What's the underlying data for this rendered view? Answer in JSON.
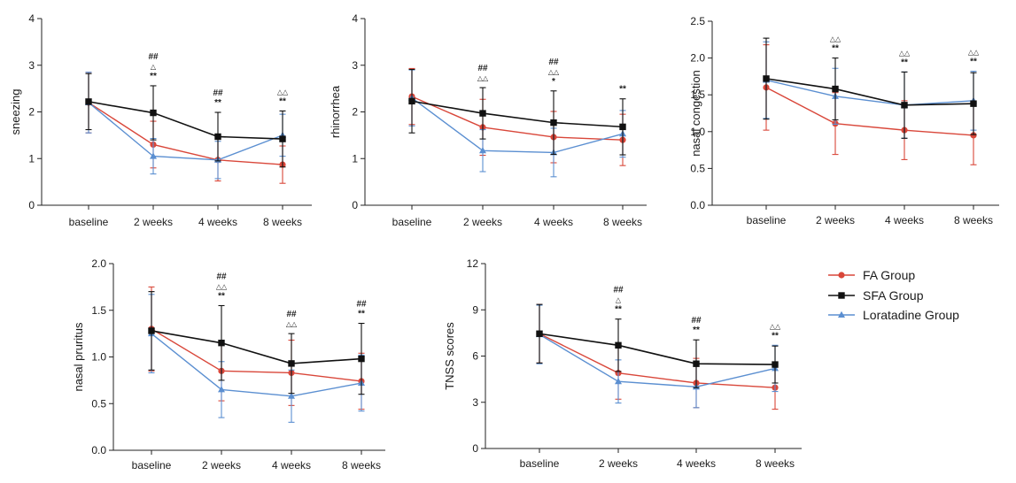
{
  "legend": {
    "items": [
      {
        "key": "fa",
        "label": "FA Group"
      },
      {
        "key": "sfa",
        "label": "SFA Group"
      },
      {
        "key": "lor",
        "label": "Loratadine Group"
      }
    ]
  },
  "colors": {
    "fa": "#d9473a",
    "sfa": "#111111",
    "lor": "#5b8fd1"
  },
  "markers": {
    "fa": "circle",
    "sfa": "square",
    "lor": "triangle"
  },
  "chart_data": [
    {
      "id": "sneezing",
      "type": "line",
      "ylabel": "sneezing",
      "xlabel": "",
      "categories": [
        "baseline",
        "2 weeks",
        "4 weeks",
        "8 weeks"
      ],
      "ylim": [
        0,
        4
      ],
      "yticks": [
        "0",
        "1",
        "2",
        "3",
        "4"
      ],
      "series": [
        {
          "key": "fa",
          "name": "FA Group",
          "values": [
            2.2,
            1.3,
            0.97,
            0.87
          ],
          "err": [
            0.65,
            0.5,
            0.45,
            0.4
          ]
        },
        {
          "key": "sfa",
          "name": "SFA Group",
          "values": [
            2.22,
            1.98,
            1.47,
            1.42
          ],
          "err": [
            0.6,
            0.58,
            0.52,
            0.6
          ]
        },
        {
          "key": "lor",
          "name": "Loratadine Group",
          "values": [
            2.2,
            1.05,
            0.97,
            1.5
          ],
          "err": [
            0.65,
            0.38,
            0.4,
            0.45
          ]
        }
      ],
      "annotations": [
        {
          "x": 1,
          "lines": [
            "##",
            "△",
            "**"
          ]
        },
        {
          "x": 2,
          "lines": [
            "##",
            "**"
          ]
        },
        {
          "x": 3,
          "lines": [
            "△△",
            "**"
          ]
        }
      ]
    },
    {
      "id": "rhinorrhea",
      "type": "line",
      "ylabel": "rhinorrhea",
      "xlabel": "",
      "categories": [
        "baseline",
        "2 weeks",
        "4 weeks",
        "8 weeks"
      ],
      "ylim": [
        0,
        4
      ],
      "yticks": [
        "0",
        "1",
        "2",
        "3",
        "4"
      ],
      "series": [
        {
          "key": "fa",
          "name": "FA Group",
          "values": [
            2.33,
            1.67,
            1.46,
            1.4
          ],
          "err": [
            0.6,
            0.6,
            0.55,
            0.55
          ]
        },
        {
          "key": "sfa",
          "name": "SFA Group",
          "values": [
            2.23,
            1.97,
            1.77,
            1.68
          ],
          "err": [
            0.68,
            0.55,
            0.68,
            0.6
          ]
        },
        {
          "key": "lor",
          "name": "Loratadine Group",
          "values": [
            2.3,
            1.17,
            1.13,
            1.53
          ],
          "err": [
            0.6,
            0.45,
            0.52,
            0.5
          ]
        }
      ],
      "annotations": [
        {
          "x": 1,
          "lines": [
            "##",
            "△△"
          ]
        },
        {
          "x": 2,
          "lines": [
            "##",
            "△△",
            "*"
          ]
        },
        {
          "x": 3,
          "lines": [
            "**"
          ]
        }
      ]
    },
    {
      "id": "nasal-congestion",
      "type": "line",
      "ylabel": "nasal congestion",
      "xlabel": "",
      "categories": [
        "baseline",
        "2 weeks",
        "4 weeks",
        "8 weeks"
      ],
      "ylim": [
        0,
        2.5
      ],
      "yticks": [
        "0.0",
        "0.5",
        "1.0",
        "1.5",
        "2.0",
        "2.5"
      ],
      "series": [
        {
          "key": "fa",
          "name": "FA Group",
          "values": [
            1.6,
            1.11,
            1.02,
            0.95
          ],
          "err": [
            0.58,
            0.42,
            0.4,
            0.4
          ]
        },
        {
          "key": "sfa",
          "name": "SFA Group",
          "values": [
            1.72,
            1.58,
            1.36,
            1.38
          ],
          "err": [
            0.55,
            0.42,
            0.45,
            0.42
          ]
        },
        {
          "key": "lor",
          "name": "Loratadine Group",
          "values": [
            1.7,
            1.48,
            1.36,
            1.42
          ],
          "err": [
            0.52,
            0.38,
            0.45,
            0.4
          ]
        }
      ],
      "annotations": [
        {
          "x": 1,
          "lines": [
            "△△",
            "**"
          ]
        },
        {
          "x": 2,
          "lines": [
            "△△",
            "**"
          ]
        },
        {
          "x": 3,
          "lines": [
            "△△",
            "**"
          ]
        }
      ]
    },
    {
      "id": "nasal-pruritus",
      "type": "line",
      "ylabel": "nasal pruritus",
      "xlabel": "",
      "categories": [
        "baseline",
        "2 weeks",
        "4 weeks",
        "8 weeks"
      ],
      "ylim": [
        0,
        2
      ],
      "yticks": [
        "0.0",
        "0.5",
        "1.0",
        "1.5",
        "2.0"
      ],
      "series": [
        {
          "key": "fa",
          "name": "FA Group",
          "values": [
            1.3,
            0.85,
            0.83,
            0.74
          ],
          "err": [
            0.45,
            0.32,
            0.35,
            0.3
          ]
        },
        {
          "key": "sfa",
          "name": "SFA Group",
          "values": [
            1.28,
            1.15,
            0.93,
            0.98
          ],
          "err": [
            0.42,
            0.4,
            0.32,
            0.38
          ]
        },
        {
          "key": "lor",
          "name": "Loratadine Group",
          "values": [
            1.25,
            0.65,
            0.58,
            0.72
          ],
          "err": [
            0.42,
            0.3,
            0.28,
            0.3
          ]
        }
      ],
      "annotations": [
        {
          "x": 1,
          "lines": [
            "##",
            "△△",
            "**"
          ]
        },
        {
          "x": 2,
          "lines": [
            "##",
            "△△"
          ]
        },
        {
          "x": 3,
          "lines": [
            "##",
            "**"
          ]
        }
      ]
    },
    {
      "id": "tnss-scores",
      "type": "line",
      "ylabel": "TNSS scores",
      "xlabel": "",
      "categories": [
        "baseline",
        "2 weeks",
        "4 weeks",
        "8 weeks"
      ],
      "ylim": [
        0,
        12
      ],
      "yticks": [
        "0",
        "3",
        "6",
        "9",
        "12"
      ],
      "series": [
        {
          "key": "fa",
          "name": "FA Group",
          "values": [
            7.45,
            4.9,
            4.25,
            3.95
          ],
          "err": [
            1.9,
            1.7,
            1.6,
            1.4
          ]
        },
        {
          "key": "sfa",
          "name": "SFA Group",
          "values": [
            7.45,
            6.7,
            5.5,
            5.45
          ],
          "err": [
            1.9,
            1.7,
            1.55,
            1.2
          ]
        },
        {
          "key": "lor",
          "name": "Loratadine Group",
          "values": [
            7.4,
            4.35,
            4.0,
            5.2
          ],
          "err": [
            1.9,
            1.4,
            1.35,
            1.5
          ]
        }
      ],
      "annotations": [
        {
          "x": 1,
          "lines": [
            "##",
            "△",
            "**"
          ]
        },
        {
          "x": 2,
          "lines": [
            "##",
            "**"
          ]
        },
        {
          "x": 3,
          "lines": [
            "△△",
            "**"
          ]
        }
      ]
    }
  ]
}
